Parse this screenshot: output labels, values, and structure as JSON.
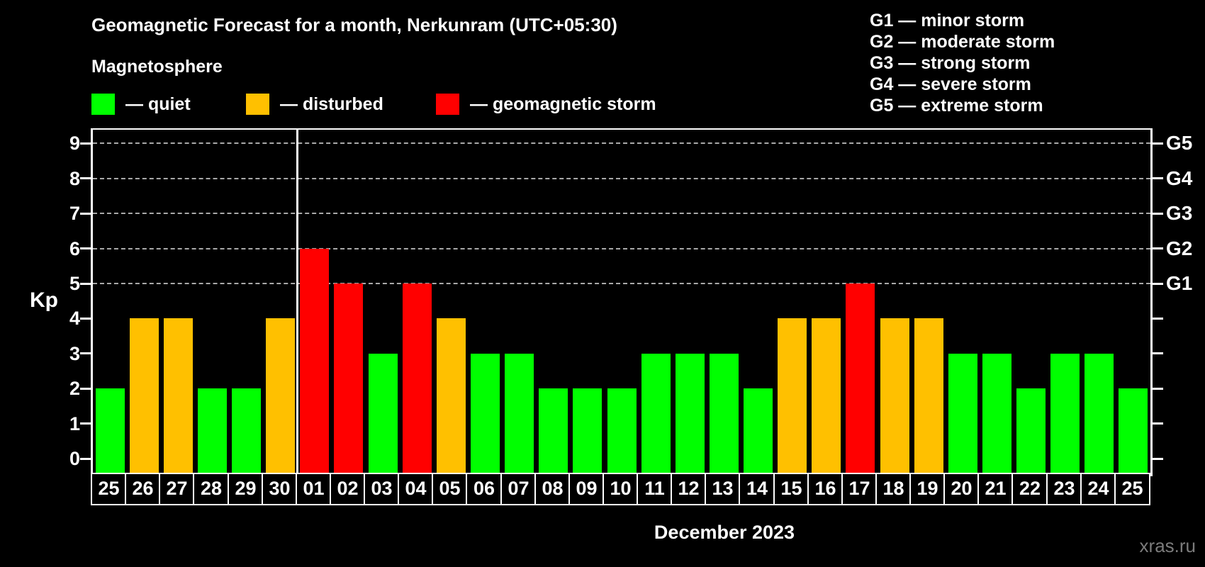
{
  "header": {
    "title": "Geomagnetic Forecast for a month, Nerkunram (UTC+05:30)",
    "subtitle": "Magnetosphere",
    "legend": [
      {
        "key": "quiet",
        "label": "— quiet",
        "color": "#00ff00",
        "x": 129
      },
      {
        "key": "disturbed",
        "label": "— disturbed",
        "color": "#ffc000",
        "x": 347
      },
      {
        "key": "storm",
        "label": "— geomagnetic storm",
        "color": "#ff0000",
        "x": 615
      }
    ],
    "storm_scale": [
      "G1 — minor storm",
      "G2 — moderate storm",
      "G3 — strong storm",
      "G4 — severe storm",
      "G5 — extreme storm"
    ]
  },
  "chart_data": {
    "type": "bar",
    "title": "Geomagnetic Forecast for a month, Nerkunram (UTC+05:30)",
    "subtitle": "Magnetosphere",
    "ylabel": "Kp",
    "xlabel": "December 2023",
    "ylim": [
      0,
      9
    ],
    "yticks": [
      0,
      1,
      2,
      3,
      4,
      5,
      6,
      7,
      8,
      9
    ],
    "gridlines_at": [
      5,
      6,
      7,
      8,
      9
    ],
    "grid": "dashed horizontal at storm levels only",
    "right_axis": [
      {
        "label": "G1",
        "value": 5
      },
      {
        "label": "G2",
        "value": 6
      },
      {
        "label": "G3",
        "value": 7
      },
      {
        "label": "G4",
        "value": 8
      },
      {
        "label": "G5",
        "value": 9
      }
    ],
    "month_separator_after_index": 5,
    "categories": [
      "25",
      "26",
      "27",
      "28",
      "29",
      "30",
      "01",
      "02",
      "03",
      "04",
      "05",
      "06",
      "07",
      "08",
      "09",
      "10",
      "11",
      "12",
      "13",
      "14",
      "15",
      "16",
      "17",
      "18",
      "19",
      "20",
      "21",
      "22",
      "23",
      "24",
      "25"
    ],
    "values": [
      2,
      4,
      4,
      2,
      2,
      4,
      6,
      5,
      3,
      5,
      4,
      3,
      3,
      2,
      2,
      2,
      3,
      3,
      3,
      2,
      4,
      4,
      5,
      4,
      4,
      3,
      3,
      2,
      3,
      3,
      2
    ],
    "status": [
      "quiet",
      "disturbed",
      "disturbed",
      "quiet",
      "quiet",
      "disturbed",
      "storm",
      "storm",
      "quiet",
      "storm",
      "disturbed",
      "quiet",
      "quiet",
      "quiet",
      "quiet",
      "quiet",
      "quiet",
      "quiet",
      "quiet",
      "quiet",
      "disturbed",
      "disturbed",
      "storm",
      "disturbed",
      "disturbed",
      "quiet",
      "quiet",
      "quiet",
      "quiet",
      "quiet",
      "quiet"
    ],
    "status_colors": {
      "quiet": "#00ff00",
      "disturbed": "#ffc000",
      "storm": "#ff0000"
    },
    "legend_position": "top-left",
    "axis_color": "#ffffff",
    "background_color": "#000000"
  },
  "footer": {
    "watermark": "xras.ru"
  }
}
